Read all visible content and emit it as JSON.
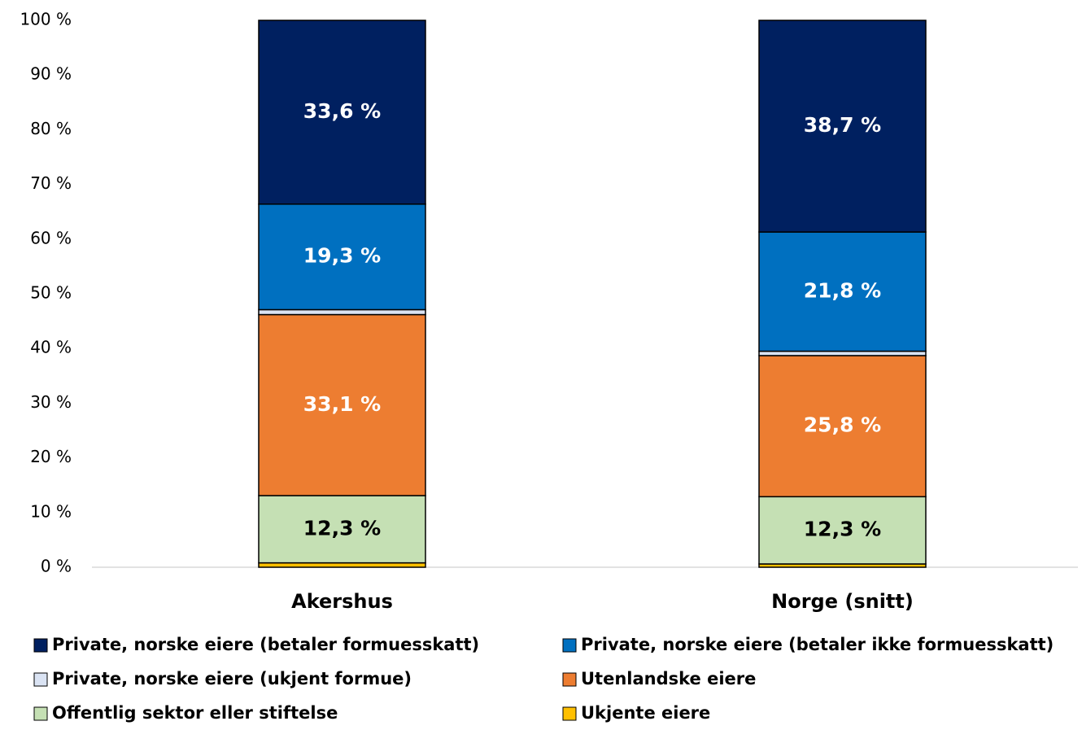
{
  "chart_data": {
    "type": "stacked_bar",
    "categories": [
      "Akershus",
      "Norge (snitt)"
    ],
    "series": [
      {
        "name": "Private, norske eiere (betaler formuesskatt)",
        "color": "#002060",
        "label_color": "#ffffff",
        "values": [
          33.6,
          38.7
        ],
        "value_labels": [
          "33,6 %",
          "38,7 %"
        ]
      },
      {
        "name": "Private, norske eiere (betaler ikke formuesskatt)",
        "color": "#0070c0",
        "label_color": "#ffffff",
        "values": [
          19.3,
          21.8
        ],
        "value_labels": [
          "19,3 %",
          "21,8 %"
        ]
      },
      {
        "name": "Private, norske eiere (ukjent formue)",
        "color": "#dae3f3",
        "label_color": "#000000",
        "values": [
          0.9,
          0.8
        ],
        "value_labels": [
          null,
          null
        ]
      },
      {
        "name": "Utenlandske eiere",
        "color": "#ed7d31",
        "label_color": "#ffffff",
        "values": [
          33.1,
          25.8
        ],
        "value_labels": [
          "33,1 %",
          "25,8 %"
        ]
      },
      {
        "name": "Offentlig sektor eller stiftelse",
        "color": "#c5e0b4",
        "label_color": "#000000",
        "values": [
          12.3,
          12.3
        ],
        "value_labels": [
          "12,3 %",
          "12,3 %"
        ]
      },
      {
        "name": "Ukjente eiere",
        "color": "#ffc000",
        "label_color": "#000000",
        "values": [
          0.8,
          0.6
        ],
        "value_labels": [
          null,
          null
        ]
      }
    ],
    "ylim": [
      0,
      100
    ],
    "yticks": [
      {
        "value": 0,
        "label": "0 %"
      },
      {
        "value": 10,
        "label": "10 %"
      },
      {
        "value": 20,
        "label": "20 %"
      },
      {
        "value": 30,
        "label": "30 %"
      },
      {
        "value": 40,
        "label": "40 %"
      },
      {
        "value": 50,
        "label": "50 %"
      },
      {
        "value": 60,
        "label": "60 %"
      },
      {
        "value": 70,
        "label": "70 %"
      },
      {
        "value": 80,
        "label": "80 %"
      },
      {
        "value": 90,
        "label": "90 %"
      },
      {
        "value": 100,
        "label": "100 %"
      }
    ],
    "legend": "bottom"
  }
}
